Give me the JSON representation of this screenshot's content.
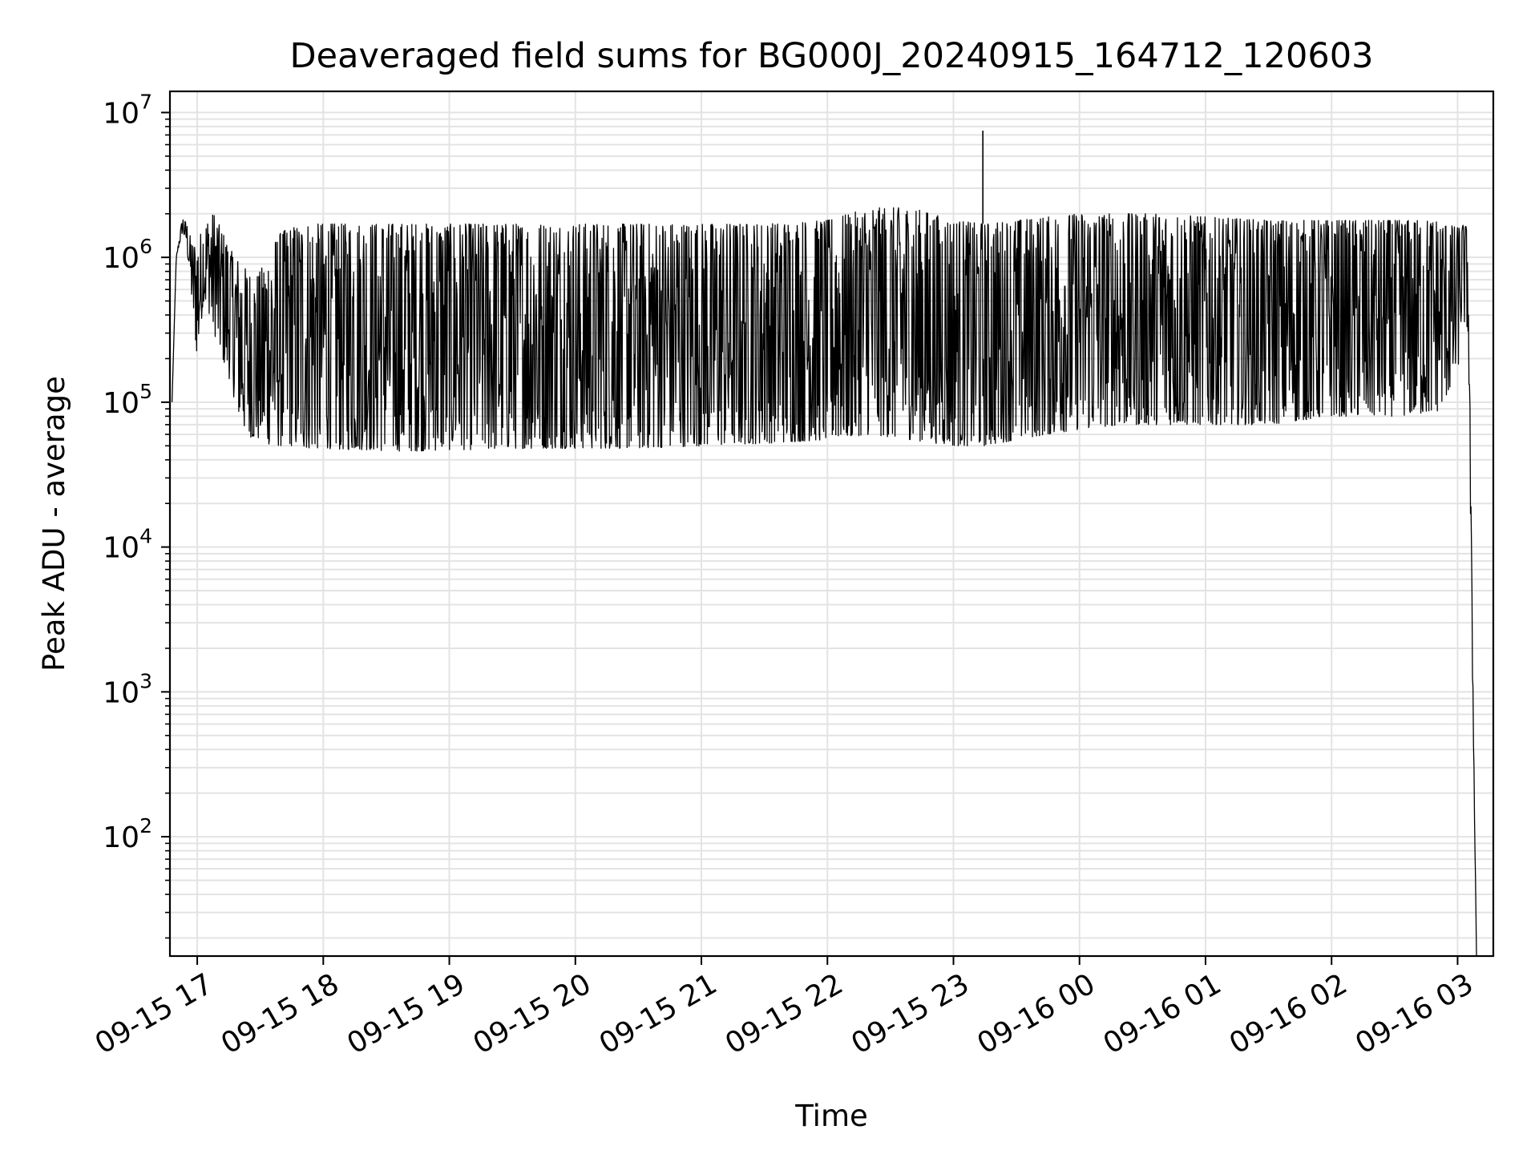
{
  "chart_data": {
    "type": "line",
    "title": "Deaveraged field sums for BG000J_20240915_164712_120603",
    "xlabel": "Time",
    "ylabel": "Peak ADU - average",
    "yscale": "log",
    "grid": true,
    "line_color": "#000000",
    "grid_color": "#e3e3e3",
    "xlim": [
      "2024-09-15 16:47",
      "2024-09-16 03:17"
    ],
    "ylim": [
      15,
      14000000
    ],
    "x_ticks": [
      {
        "label": "09-15 17",
        "x": "2024-09-15 17:00"
      },
      {
        "label": "09-15 18",
        "x": "2024-09-15 18:00"
      },
      {
        "label": "09-15 19",
        "x": "2024-09-15 19:00"
      },
      {
        "label": "09-15 20",
        "x": "2024-09-15 20:00"
      },
      {
        "label": "09-15 21",
        "x": "2024-09-15 21:00"
      },
      {
        "label": "09-15 22",
        "x": "2024-09-15 22:00"
      },
      {
        "label": "09-15 23",
        "x": "2024-09-15 23:00"
      },
      {
        "label": "09-16 00",
        "x": "2024-09-16 00:00"
      },
      {
        "label": "09-16 01",
        "x": "2024-09-16 01:00"
      },
      {
        "label": "09-16 02",
        "x": "2024-09-16 02:00"
      },
      {
        "label": "09-16 03",
        "x": "2024-09-16 03:00"
      }
    ],
    "y_ticks": [
      {
        "base": "10",
        "exp": "2",
        "value": 100
      },
      {
        "base": "10",
        "exp": "3",
        "value": 1000
      },
      {
        "base": "10",
        "exp": "4",
        "value": 10000
      },
      {
        "base": "10",
        "exp": "5",
        "value": 100000
      },
      {
        "base": "10",
        "exp": "6",
        "value": 1000000
      },
      {
        "base": "10",
        "exp": "7",
        "value": 10000000
      }
    ],
    "series": [
      {
        "x": [
          "2024-09-15 16:48",
          "2024-09-15 16:50",
          "2024-09-15 16:53",
          "2024-09-15 16:55",
          "2024-09-15 16:58",
          "2024-09-15 17:00",
          "2024-09-15 17:03",
          "2024-09-15 17:06",
          "2024-09-15 17:08",
          "2024-09-15 17:12",
          "2024-09-15 17:15",
          "2024-09-15 17:18",
          "2024-09-15 17:21",
          "2024-09-15 17:24",
          "2024-09-15 17:27",
          "2024-09-15 17:30",
          "2024-09-15 17:33",
          "2024-09-15 17:36",
          "2024-09-15 17:40",
          "2024-09-15 17:45",
          "2024-09-15 17:50",
          "2024-09-15 18:00",
          "2024-09-15 18:10",
          "2024-09-15 18:20",
          "2024-09-15 18:30",
          "2024-09-15 18:45",
          "2024-09-15 19:00",
          "2024-09-15 19:15",
          "2024-09-15 19:30",
          "2024-09-15 19:45",
          "2024-09-15 20:00",
          "2024-09-15 20:30",
          "2024-09-15 21:00",
          "2024-09-15 21:30",
          "2024-09-15 22:00",
          "2024-09-15 22:20",
          "2024-09-15 22:40",
          "2024-09-15 23:00",
          "2024-09-15 23:15",
          "2024-09-15 23:30",
          "2024-09-15 23:45",
          "2024-09-16 00:00",
          "2024-09-16 00:20",
          "2024-09-16 00:40",
          "2024-09-16 01:00",
          "2024-09-16 01:30",
          "2024-09-16 02:00",
          "2024-09-16 02:30",
          "2024-09-16 02:50",
          "2024-09-16 03:00",
          "2024-09-16 03:02",
          "2024-09-16 03:05",
          "2024-09-16 03:07",
          "2024-09-16 03:09"
        ],
        "y_low": [
          100000,
          1000000,
          1500000,
          1200000,
          400000,
          200000,
          500000,
          400000,
          300000,
          200000,
          150000,
          100000,
          70000,
          60000,
          55000,
          55000,
          52000,
          50000,
          50000,
          50000,
          48000,
          48000,
          47000,
          47000,
          46000,
          46000,
          47000,
          47000,
          48000,
          48000,
          48000,
          48000,
          50000,
          52000,
          55000,
          60000,
          55000,
          50000,
          50000,
          55000,
          60000,
          65000,
          70000,
          70000,
          70000,
          70000,
          80000,
          80000,
          85000,
          150000,
          400000,
          300000,
          1500,
          15
        ],
        "y_high": [
          100000,
          1000000,
          1900000,
          1700000,
          1200000,
          1300000,
          1600000,
          1900000,
          2000000,
          1500000,
          1200000,
          1000000,
          900000,
          800000,
          700000,
          800000,
          1000000,
          1200000,
          1500000,
          1600000,
          1700000,
          1700000,
          1700000,
          1700000,
          1700000,
          1700000,
          1700000,
          1700000,
          1700000,
          1700000,
          1700000,
          1700000,
          1700000,
          1700000,
          1800000,
          2200000,
          2200000,
          1800000,
          1700000,
          1800000,
          1900000,
          2000000,
          2000000,
          2000000,
          1900000,
          1800000,
          1800000,
          1800000,
          1800000,
          1600000,
          1700000,
          1600000,
          3000,
          15
        ],
        "spikes": [
          {
            "x": "2024-09-15 23:14",
            "y": 7500000
          }
        ]
      }
    ]
  }
}
